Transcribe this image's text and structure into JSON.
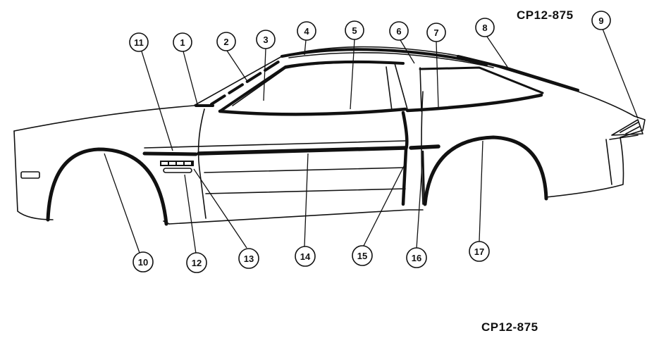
{
  "figure_codes": {
    "top": "CP12-875",
    "bottom": "CP12-875"
  },
  "callouts": [
    "1",
    "2",
    "3",
    "4",
    "5",
    "6",
    "7",
    "8",
    "9",
    "10",
    "11",
    "12",
    "13",
    "14",
    "15",
    "16",
    "17"
  ],
  "colors": {
    "line": "#111111",
    "background": "#ffffff"
  }
}
